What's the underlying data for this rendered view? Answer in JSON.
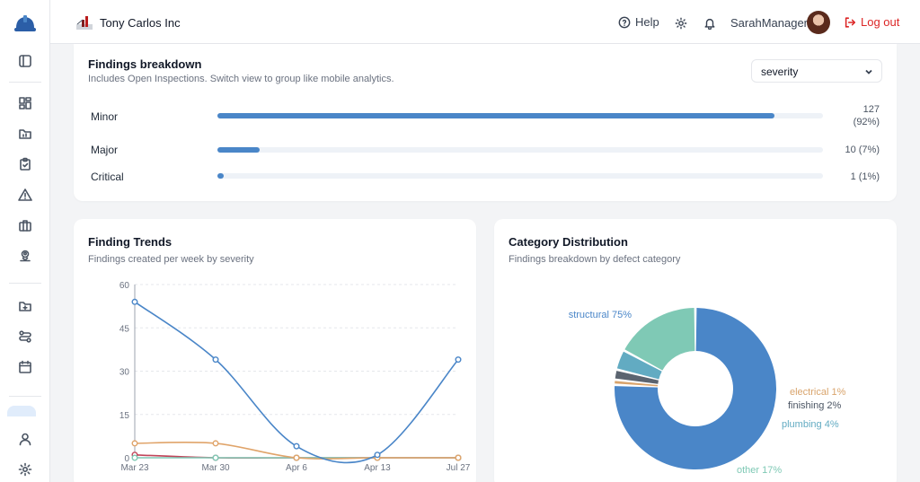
{
  "header": {
    "company": "Tony Carlos Inc",
    "help_label": "Help",
    "user_name": "SarahManager",
    "logout_label": "Log out"
  },
  "breakdown": {
    "title": "Findings breakdown",
    "subtitle": "Includes Open Inspections. Switch view to group like mobile analytics.",
    "group_by": "severity",
    "rows": [
      {
        "label": "Minor",
        "value_text": "127",
        "percent_text": "(92%)",
        "fraction": 0.92
      },
      {
        "label": "Major",
        "value_text": "10 (7%)",
        "fraction": 0.07
      },
      {
        "label": "Critical",
        "value_text": "1 (1%)",
        "fraction": 0.01
      }
    ]
  },
  "trends": {
    "title": "Finding Trends",
    "subtitle": "Findings created per week by severity"
  },
  "distribution": {
    "title": "Category Distribution",
    "subtitle": "Findings breakdown by defect category"
  },
  "chart_data": [
    {
      "type": "line",
      "x": [
        "Mar 23",
        "Mar 30",
        "Apr 6",
        "Apr 13",
        "Jul 27"
      ],
      "ylim": [
        0,
        60
      ],
      "yticks": [
        0,
        15,
        30,
        45,
        60
      ],
      "grid": true,
      "series": [
        {
          "color": "#4a86c8",
          "values": [
            54,
            34,
            4,
            1,
            34
          ]
        },
        {
          "color": "#e0a46a",
          "values": [
            5,
            5,
            0,
            0,
            0
          ]
        },
        {
          "color": "#7fc9b5",
          "values": [
            0,
            0,
            0,
            0,
            0
          ]
        },
        {
          "color": "#c0455a",
          "values": [
            1,
            0,
            0,
            0,
            0
          ]
        }
      ]
    },
    {
      "type": "pie",
      "donut": true,
      "slices": [
        {
          "label": "structural 75%",
          "value": 75,
          "color": "#4a86c8",
          "label_color": "#4a86c8"
        },
        {
          "label": "electrical 1%",
          "value": 1,
          "color": "#d9a46c",
          "label_color": "#d9a46c"
        },
        {
          "label": "finishing 2%",
          "value": 2,
          "color": "#5b6470",
          "label_color": "#4b5563"
        },
        {
          "label": "plumbing 4%",
          "value": 4,
          "color": "#62abc2",
          "label_color": "#62abc2"
        },
        {
          "label": "other 17%",
          "value": 17,
          "color": "#7fc9b5",
          "label_color": "#7fc9b5"
        }
      ]
    }
  ]
}
